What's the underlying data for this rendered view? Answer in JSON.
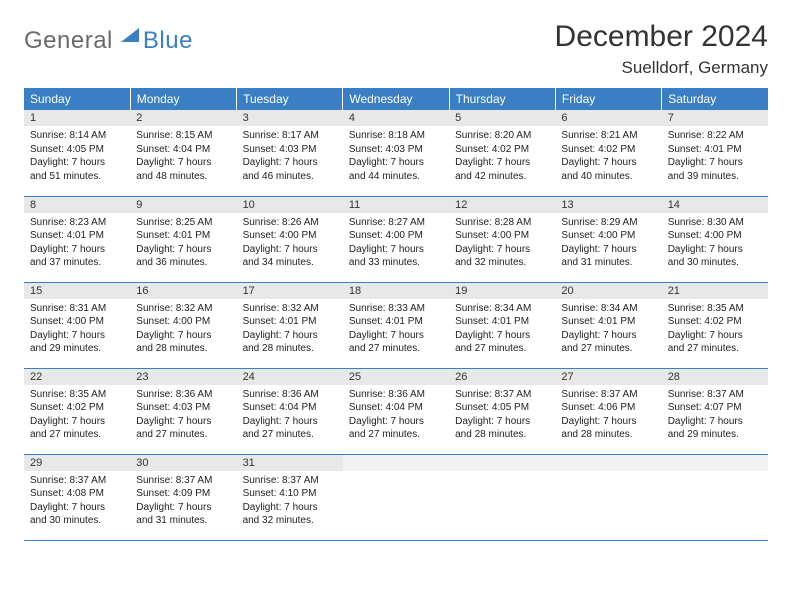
{
  "brand": {
    "part1": "General",
    "part2": "Blue",
    "color1": "#6a6a6a",
    "color2": "#3a7fc4"
  },
  "title": "December 2024",
  "location": "Suelldorf, Germany",
  "colors": {
    "header_bg": "#3a7fc4",
    "header_text": "#ffffff",
    "daynum_bg": "#e8e8e8",
    "rule": "#3a7fc4"
  },
  "weekdays": [
    "Sunday",
    "Monday",
    "Tuesday",
    "Wednesday",
    "Thursday",
    "Friday",
    "Saturday"
  ],
  "days": [
    {
      "n": 1,
      "sunrise": "8:14 AM",
      "sunset": "4:05 PM",
      "daylight": "7 hours and 51 minutes."
    },
    {
      "n": 2,
      "sunrise": "8:15 AM",
      "sunset": "4:04 PM",
      "daylight": "7 hours and 48 minutes."
    },
    {
      "n": 3,
      "sunrise": "8:17 AM",
      "sunset": "4:03 PM",
      "daylight": "7 hours and 46 minutes."
    },
    {
      "n": 4,
      "sunrise": "8:18 AM",
      "sunset": "4:03 PM",
      "daylight": "7 hours and 44 minutes."
    },
    {
      "n": 5,
      "sunrise": "8:20 AM",
      "sunset": "4:02 PM",
      "daylight": "7 hours and 42 minutes."
    },
    {
      "n": 6,
      "sunrise": "8:21 AM",
      "sunset": "4:02 PM",
      "daylight": "7 hours and 40 minutes."
    },
    {
      "n": 7,
      "sunrise": "8:22 AM",
      "sunset": "4:01 PM",
      "daylight": "7 hours and 39 minutes."
    },
    {
      "n": 8,
      "sunrise": "8:23 AM",
      "sunset": "4:01 PM",
      "daylight": "7 hours and 37 minutes."
    },
    {
      "n": 9,
      "sunrise": "8:25 AM",
      "sunset": "4:01 PM",
      "daylight": "7 hours and 36 minutes."
    },
    {
      "n": 10,
      "sunrise": "8:26 AM",
      "sunset": "4:00 PM",
      "daylight": "7 hours and 34 minutes."
    },
    {
      "n": 11,
      "sunrise": "8:27 AM",
      "sunset": "4:00 PM",
      "daylight": "7 hours and 33 minutes."
    },
    {
      "n": 12,
      "sunrise": "8:28 AM",
      "sunset": "4:00 PM",
      "daylight": "7 hours and 32 minutes."
    },
    {
      "n": 13,
      "sunrise": "8:29 AM",
      "sunset": "4:00 PM",
      "daylight": "7 hours and 31 minutes."
    },
    {
      "n": 14,
      "sunrise": "8:30 AM",
      "sunset": "4:00 PM",
      "daylight": "7 hours and 30 minutes."
    },
    {
      "n": 15,
      "sunrise": "8:31 AM",
      "sunset": "4:00 PM",
      "daylight": "7 hours and 29 minutes."
    },
    {
      "n": 16,
      "sunrise": "8:32 AM",
      "sunset": "4:00 PM",
      "daylight": "7 hours and 28 minutes."
    },
    {
      "n": 17,
      "sunrise": "8:32 AM",
      "sunset": "4:01 PM",
      "daylight": "7 hours and 28 minutes."
    },
    {
      "n": 18,
      "sunrise": "8:33 AM",
      "sunset": "4:01 PM",
      "daylight": "7 hours and 27 minutes."
    },
    {
      "n": 19,
      "sunrise": "8:34 AM",
      "sunset": "4:01 PM",
      "daylight": "7 hours and 27 minutes."
    },
    {
      "n": 20,
      "sunrise": "8:34 AM",
      "sunset": "4:01 PM",
      "daylight": "7 hours and 27 minutes."
    },
    {
      "n": 21,
      "sunrise": "8:35 AM",
      "sunset": "4:02 PM",
      "daylight": "7 hours and 27 minutes."
    },
    {
      "n": 22,
      "sunrise": "8:35 AM",
      "sunset": "4:02 PM",
      "daylight": "7 hours and 27 minutes."
    },
    {
      "n": 23,
      "sunrise": "8:36 AM",
      "sunset": "4:03 PM",
      "daylight": "7 hours and 27 minutes."
    },
    {
      "n": 24,
      "sunrise": "8:36 AM",
      "sunset": "4:04 PM",
      "daylight": "7 hours and 27 minutes."
    },
    {
      "n": 25,
      "sunrise": "8:36 AM",
      "sunset": "4:04 PM",
      "daylight": "7 hours and 27 minutes."
    },
    {
      "n": 26,
      "sunrise": "8:37 AM",
      "sunset": "4:05 PM",
      "daylight": "7 hours and 28 minutes."
    },
    {
      "n": 27,
      "sunrise": "8:37 AM",
      "sunset": "4:06 PM",
      "daylight": "7 hours and 28 minutes."
    },
    {
      "n": 28,
      "sunrise": "8:37 AM",
      "sunset": "4:07 PM",
      "daylight": "7 hours and 29 minutes."
    },
    {
      "n": 29,
      "sunrise": "8:37 AM",
      "sunset": "4:08 PM",
      "daylight": "7 hours and 30 minutes."
    },
    {
      "n": 30,
      "sunrise": "8:37 AM",
      "sunset": "4:09 PM",
      "daylight": "7 hours and 31 minutes."
    },
    {
      "n": 31,
      "sunrise": "8:37 AM",
      "sunset": "4:10 PM",
      "daylight": "7 hours and 32 minutes."
    }
  ],
  "labels": {
    "sunrise": "Sunrise:",
    "sunset": "Sunset:",
    "daylight": "Daylight:"
  },
  "layout": {
    "start_weekday": 0,
    "total_cells": 35
  }
}
